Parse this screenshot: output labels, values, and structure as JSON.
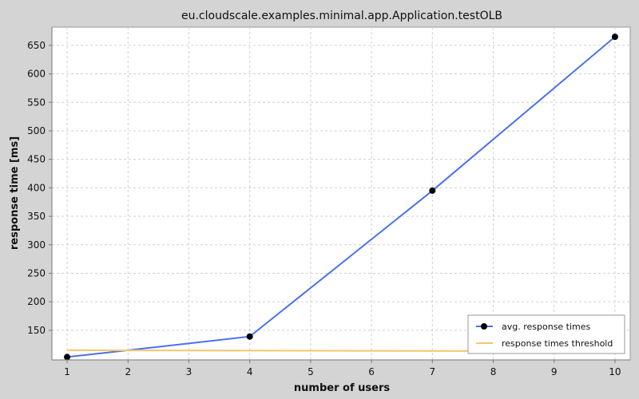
{
  "chart_data": {
    "type": "line",
    "title": "eu.cloudscale.examples.minimal.app.Application.testOLB",
    "xlabel": "number of users",
    "ylabel": "response time [ms]",
    "xlim": [
      0.75,
      10.25
    ],
    "ylim": [
      98,
      682
    ],
    "x_ticks": [
      1,
      2,
      3,
      4,
      5,
      6,
      7,
      8,
      9,
      10
    ],
    "y_ticks": [
      150,
      200,
      250,
      300,
      350,
      400,
      450,
      500,
      550,
      600,
      650
    ],
    "grid": true,
    "legend_position": "bottom-right",
    "series": [
      {
        "name": "avg. response times",
        "color": "#4a6ff0",
        "marker": "circle",
        "x": [
          1,
          4,
          7,
          10
        ],
        "y": [
          103,
          139,
          395,
          665
        ]
      },
      {
        "name": "response times threshold",
        "color": "#f5c66a",
        "marker": "none",
        "x": [
          1,
          10
        ],
        "y": [
          115,
          113
        ]
      }
    ]
  }
}
